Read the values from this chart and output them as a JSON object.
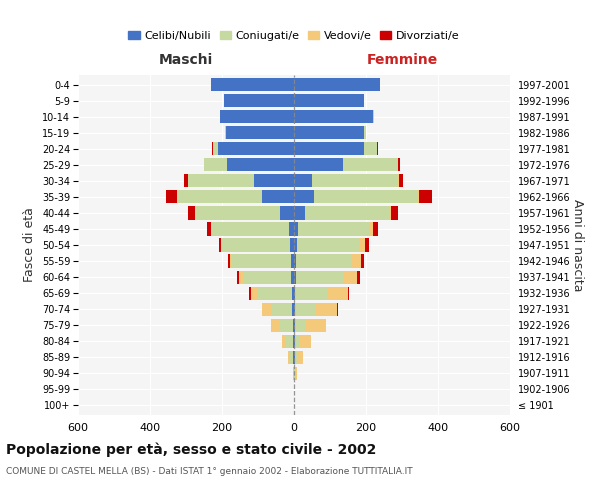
{
  "age_groups": [
    "100+",
    "95-99",
    "90-94",
    "85-89",
    "80-84",
    "75-79",
    "70-74",
    "65-69",
    "60-64",
    "55-59",
    "50-54",
    "45-49",
    "40-44",
    "35-39",
    "30-34",
    "25-29",
    "20-24",
    "15-19",
    "10-14",
    "5-9",
    "0-4"
  ],
  "birth_years": [
    "≤ 1901",
    "1902-1906",
    "1907-1911",
    "1912-1916",
    "1917-1921",
    "1922-1926",
    "1927-1931",
    "1932-1936",
    "1937-1941",
    "1942-1946",
    "1947-1951",
    "1952-1956",
    "1957-1961",
    "1962-1966",
    "1967-1971",
    "1972-1976",
    "1977-1981",
    "1982-1986",
    "1987-1991",
    "1992-1996",
    "1997-2001"
  ],
  "males": {
    "celibi": [
      0,
      0,
      0,
      2,
      2,
      3,
      5,
      5,
      7,
      8,
      10,
      15,
      40,
      90,
      110,
      185,
      210,
      190,
      205,
      195,
      230
    ],
    "coniugati": [
      0,
      0,
      3,
      10,
      20,
      40,
      60,
      95,
      135,
      165,
      190,
      215,
      235,
      235,
      185,
      65,
      15,
      2,
      1,
      0,
      0
    ],
    "vedovi": [
      0,
      0,
      1,
      5,
      10,
      20,
      25,
      20,
      10,
      5,
      2,
      1,
      0,
      0,
      0,
      0,
      0,
      0,
      0,
      0,
      0
    ],
    "divorziati": [
      0,
      0,
      0,
      0,
      0,
      0,
      0,
      5,
      5,
      5,
      5,
      10,
      20,
      30,
      10,
      0,
      2,
      0,
      0,
      0,
      0
    ]
  },
  "females": {
    "nubili": [
      0,
      0,
      0,
      2,
      2,
      3,
      4,
      4,
      5,
      6,
      8,
      10,
      30,
      55,
      50,
      135,
      195,
      195,
      220,
      195,
      240
    ],
    "coniugate": [
      0,
      0,
      2,
      8,
      15,
      30,
      55,
      90,
      130,
      155,
      175,
      200,
      235,
      290,
      240,
      155,
      35,
      5,
      1,
      0,
      0
    ],
    "vedove": [
      0,
      1,
      5,
      15,
      30,
      55,
      60,
      55,
      40,
      25,
      15,
      10,
      5,
      2,
      1,
      0,
      0,
      0,
      0,
      0,
      0
    ],
    "divorziate": [
      0,
      0,
      0,
      0,
      0,
      0,
      2,
      5,
      8,
      8,
      10,
      12,
      20,
      35,
      12,
      5,
      2,
      0,
      0,
      0,
      0
    ]
  },
  "colors": {
    "celibi": "#4472c4",
    "coniugati": "#c5d9a0",
    "vedovi": "#f5c97a",
    "divorziati": "#cc0000"
  },
  "xlim": 600,
  "title": "Popolazione per età, sesso e stato civile - 2002",
  "subtitle": "COMUNE DI CASTEL MELLA (BS) - Dati ISTAT 1° gennaio 2002 - Elaborazione TUTTITALIA.IT",
  "ylabel_left": "Fasce di età",
  "ylabel_right": "Anni di nascita",
  "maschi_label": "Maschi",
  "femmine_label": "Femmine",
  "legend_labels": [
    "Celibi/Nubili",
    "Coniugati/e",
    "Vedovi/e",
    "Divorziati/e"
  ],
  "bg_color": "#f5f5f5"
}
